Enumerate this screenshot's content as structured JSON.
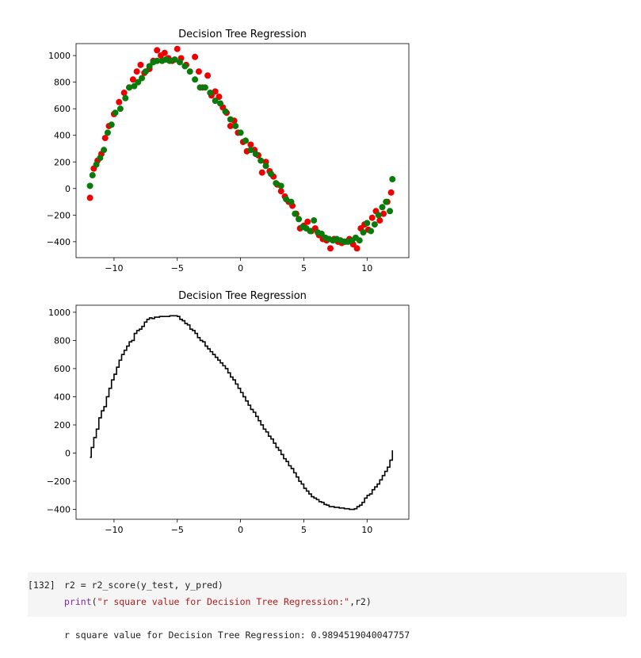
{
  "chart_data": [
    {
      "type": "scatter",
      "title": "Decision Tree Regression",
      "xlim": [
        -13,
        13.3
      ],
      "ylim": [
        -520,
        1090
      ],
      "xticks": [
        -10,
        -5,
        0,
        5,
        10
      ],
      "yticks": [
        -400,
        -200,
        0,
        200,
        400,
        600,
        800,
        1000
      ],
      "grid": false,
      "series": [
        {
          "color": "#ee0000",
          "points": [
            [
              -11.9,
              -70
            ],
            [
              -11.6,
              150
            ],
            [
              -11.3,
              210
            ],
            [
              -11.0,
              260
            ],
            [
              -10.7,
              380
            ],
            [
              -10.4,
              470
            ],
            [
              -10.0,
              560
            ],
            [
              -9.6,
              650
            ],
            [
              -9.2,
              720
            ],
            [
              -8.8,
              760
            ],
            [
              -8.5,
              820
            ],
            [
              -8.2,
              880
            ],
            [
              -7.9,
              930
            ],
            [
              -7.6,
              870
            ],
            [
              -7.2,
              900
            ],
            [
              -6.9,
              960
            ],
            [
              -6.6,
              1040
            ],
            [
              -6.3,
              1000
            ],
            [
              -6.0,
              1020
            ],
            [
              -5.7,
              980
            ],
            [
              -5.4,
              960
            ],
            [
              -5.0,
              1050
            ],
            [
              -4.7,
              980
            ],
            [
              -4.3,
              930
            ],
            [
              -3.6,
              990
            ],
            [
              -3.3,
              880
            ],
            [
              -3.0,
              760
            ],
            [
              -2.6,
              850
            ],
            [
              -2.3,
              700
            ],
            [
              -2.0,
              730
            ],
            [
              -1.7,
              690
            ],
            [
              -1.4,
              610
            ],
            [
              -1.1,
              570
            ],
            [
              -0.8,
              470
            ],
            [
              -0.5,
              510
            ],
            [
              -0.2,
              420
            ],
            [
              0.2,
              350
            ],
            [
              0.5,
              280
            ],
            [
              0.8,
              330
            ],
            [
              1.1,
              290
            ],
            [
              1.4,
              250
            ],
            [
              1.7,
              120
            ],
            [
              2.0,
              200
            ],
            [
              2.3,
              130
            ],
            [
              2.6,
              90
            ],
            [
              2.9,
              30
            ],
            [
              3.2,
              -20
            ],
            [
              3.5,
              -60
            ],
            [
              3.8,
              -100
            ],
            [
              4.1,
              -130
            ],
            [
              4.4,
              -190
            ],
            [
              4.7,
              -300
            ],
            [
              5.0,
              -280
            ],
            [
              5.3,
              -250
            ],
            [
              5.6,
              -320
            ],
            [
              5.9,
              -300
            ],
            [
              6.2,
              -350
            ],
            [
              6.5,
              -380
            ],
            [
              6.8,
              -390
            ],
            [
              7.1,
              -450
            ],
            [
              7.4,
              -380
            ],
            [
              7.7,
              -400
            ],
            [
              8.0,
              -410
            ],
            [
              8.3,
              -400
            ],
            [
              8.6,
              -380
            ],
            [
              8.9,
              -420
            ],
            [
              9.2,
              -450
            ],
            [
              9.5,
              -300
            ],
            [
              9.8,
              -270
            ],
            [
              10.1,
              -310
            ],
            [
              10.4,
              -220
            ],
            [
              10.7,
              -170
            ],
            [
              11.0,
              -240
            ],
            [
              11.3,
              -190
            ],
            [
              11.6,
              -100
            ],
            [
              11.9,
              -30
            ]
          ]
        },
        {
          "color": "#0a7a0a",
          "points": [
            [
              -11.9,
              20
            ],
            [
              -11.7,
              100
            ],
            [
              -11.4,
              180
            ],
            [
              -11.1,
              230
            ],
            [
              -10.8,
              290
            ],
            [
              -10.5,
              420
            ],
            [
              -10.2,
              480
            ],
            [
              -9.9,
              570
            ],
            [
              -9.5,
              600
            ],
            [
              -9.1,
              680
            ],
            [
              -8.8,
              760
            ],
            [
              -8.4,
              770
            ],
            [
              -8.1,
              800
            ],
            [
              -7.8,
              830
            ],
            [
              -7.5,
              880
            ],
            [
              -7.2,
              920
            ],
            [
              -6.9,
              950
            ],
            [
              -6.6,
              960
            ],
            [
              -6.2,
              960
            ],
            [
              -5.9,
              970
            ],
            [
              -5.6,
              960
            ],
            [
              -5.2,
              970
            ],
            [
              -4.8,
              950
            ],
            [
              -4.4,
              920
            ],
            [
              -4.0,
              880
            ],
            [
              -3.6,
              820
            ],
            [
              -3.2,
              760
            ],
            [
              -2.8,
              760
            ],
            [
              -2.4,
              720
            ],
            [
              -2.0,
              660
            ],
            [
              -1.6,
              640
            ],
            [
              -1.2,
              580
            ],
            [
              -0.8,
              520
            ],
            [
              -0.4,
              470
            ],
            [
              0.0,
              420
            ],
            [
              0.4,
              360
            ],
            [
              0.8,
              290
            ],
            [
              1.2,
              260
            ],
            [
              1.6,
              210
            ],
            [
              2.0,
              170
            ],
            [
              2.4,
              110
            ],
            [
              2.8,
              40
            ],
            [
              3.2,
              20
            ],
            [
              3.6,
              -80
            ],
            [
              4.0,
              -100
            ],
            [
              4.3,
              -190
            ],
            [
              4.6,
              -230
            ],
            [
              4.9,
              -290
            ],
            [
              5.2,
              -300
            ],
            [
              5.5,
              -320
            ],
            [
              5.8,
              -240
            ],
            [
              6.1,
              -330
            ],
            [
              6.4,
              -340
            ],
            [
              6.7,
              -370
            ],
            [
              7.0,
              -380
            ],
            [
              7.3,
              -390
            ],
            [
              7.6,
              -380
            ],
            [
              7.9,
              -390
            ],
            [
              8.2,
              -400
            ],
            [
              8.5,
              -400
            ],
            [
              8.8,
              -390
            ],
            [
              9.1,
              -370
            ],
            [
              9.4,
              -390
            ],
            [
              9.7,
              -330
            ],
            [
              10.0,
              -260
            ],
            [
              10.3,
              -320
            ],
            [
              10.6,
              -270
            ],
            [
              10.9,
              -200
            ],
            [
              11.2,
              -140
            ],
            [
              11.5,
              -100
            ],
            [
              11.8,
              -170
            ],
            [
              12.0,
              70
            ]
          ]
        }
      ]
    },
    {
      "type": "line",
      "title": "Decision Tree Regression",
      "xlim": [
        -13,
        13.3
      ],
      "ylim": [
        -470,
        1050
      ],
      "xticks": [
        -10,
        -5,
        0,
        5,
        10
      ],
      "yticks": [
        -400,
        -200,
        0,
        200,
        400,
        600,
        800,
        1000
      ],
      "grid": false,
      "series": [
        {
          "color": "#000000",
          "points": [
            [
              -11.9,
              -30
            ],
            [
              -11.8,
              40
            ],
            [
              -11.6,
              110
            ],
            [
              -11.4,
              170
            ],
            [
              -11.2,
              250
            ],
            [
              -11.0,
              300
            ],
            [
              -10.8,
              330
            ],
            [
              -10.6,
              400
            ],
            [
              -10.4,
              460
            ],
            [
              -10.2,
              520
            ],
            [
              -10.0,
              560
            ],
            [
              -9.8,
              610
            ],
            [
              -9.6,
              660
            ],
            [
              -9.4,
              700
            ],
            [
              -9.2,
              730
            ],
            [
              -9.0,
              760
            ],
            [
              -8.8,
              790
            ],
            [
              -8.6,
              800
            ],
            [
              -8.4,
              850
            ],
            [
              -8.2,
              870
            ],
            [
              -8.0,
              880
            ],
            [
              -7.8,
              900
            ],
            [
              -7.6,
              930
            ],
            [
              -7.4,
              950
            ],
            [
              -7.2,
              960
            ],
            [
              -7.0,
              955
            ],
            [
              -6.8,
              965
            ],
            [
              -6.4,
              970
            ],
            [
              -6.0,
              970
            ],
            [
              -5.6,
              975
            ],
            [
              -5.2,
              975
            ],
            [
              -5.0,
              970
            ],
            [
              -4.8,
              950
            ],
            [
              -4.6,
              940
            ],
            [
              -4.4,
              920
            ],
            [
              -4.2,
              910
            ],
            [
              -4.0,
              880
            ],
            [
              -3.8,
              870
            ],
            [
              -3.6,
              850
            ],
            [
              -3.4,
              820
            ],
            [
              -3.2,
              800
            ],
            [
              -3.0,
              790
            ],
            [
              -2.8,
              760
            ],
            [
              -2.6,
              740
            ],
            [
              -2.4,
              720
            ],
            [
              -2.2,
              700
            ],
            [
              -2.0,
              680
            ],
            [
              -1.8,
              660
            ],
            [
              -1.6,
              640
            ],
            [
              -1.4,
              620
            ],
            [
              -1.2,
              600
            ],
            [
              -1.0,
              570
            ],
            [
              -0.8,
              540
            ],
            [
              -0.6,
              520
            ],
            [
              -0.4,
              490
            ],
            [
              -0.2,
              460
            ],
            [
              0.0,
              430
            ],
            [
              0.2,
              400
            ],
            [
              0.4,
              370
            ],
            [
              0.6,
              340
            ],
            [
              0.8,
              310
            ],
            [
              1.0,
              290
            ],
            [
              1.2,
              260
            ],
            [
              1.4,
              230
            ],
            [
              1.6,
              200
            ],
            [
              1.8,
              170
            ],
            [
              2.0,
              150
            ],
            [
              2.2,
              120
            ],
            [
              2.4,
              100
            ],
            [
              2.6,
              70
            ],
            [
              2.8,
              40
            ],
            [
              3.0,
              20
            ],
            [
              3.2,
              -10
            ],
            [
              3.4,
              -40
            ],
            [
              3.6,
              -60
            ],
            [
              3.8,
              -90
            ],
            [
              4.0,
              -110
            ],
            [
              4.2,
              -140
            ],
            [
              4.4,
              -170
            ],
            [
              4.6,
              -200
            ],
            [
              4.8,
              -220
            ],
            [
              5.0,
              -250
            ],
            [
              5.2,
              -270
            ],
            [
              5.4,
              -290
            ],
            [
              5.6,
              -310
            ],
            [
              5.8,
              -320
            ],
            [
              6.0,
              -330
            ],
            [
              6.2,
              -345
            ],
            [
              6.4,
              -350
            ],
            [
              6.6,
              -365
            ],
            [
              6.8,
              -370
            ],
            [
              7.0,
              -380
            ],
            [
              7.4,
              -385
            ],
            [
              7.8,
              -390
            ],
            [
              8.2,
              -395
            ],
            [
              8.6,
              -400
            ],
            [
              9.0,
              -395
            ],
            [
              9.2,
              -380
            ],
            [
              9.4,
              -370
            ],
            [
              9.6,
              -350
            ],
            [
              9.8,
              -320
            ],
            [
              10.0,
              -300
            ],
            [
              10.2,
              -290
            ],
            [
              10.4,
              -260
            ],
            [
              10.6,
              -240
            ],
            [
              10.8,
              -220
            ],
            [
              11.0,
              -190
            ],
            [
              11.2,
              -160
            ],
            [
              11.4,
              -130
            ],
            [
              11.6,
              -100
            ],
            [
              11.8,
              -50
            ],
            [
              12.0,
              20
            ]
          ]
        }
      ]
    }
  ],
  "cell": {
    "prompt": "[132]",
    "line1": "r2 = r2_score(y_test, y_pred)",
    "line2_fn": "print",
    "line2_open": "(",
    "line2_str": "\"r square value for Decision Tree Regression:\"",
    "line2_rest": ",r2)"
  },
  "output": {
    "text": "r square value for Decision Tree Regression: 0.9894519040047757"
  }
}
